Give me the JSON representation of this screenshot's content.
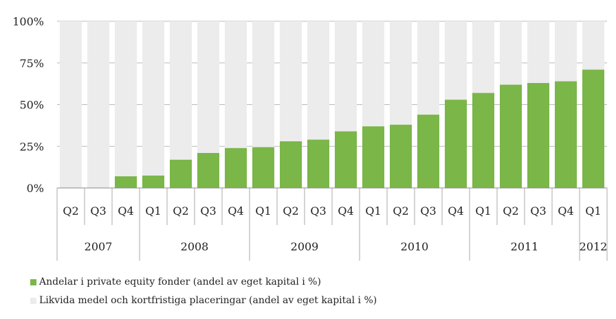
{
  "chart_data": {
    "type": "bar",
    "stacked": true,
    "categories": [
      "Q2",
      "Q3",
      "Q4",
      "Q1",
      "Q2",
      "Q3",
      "Q4",
      "Q1",
      "Q2",
      "Q3",
      "Q4",
      "Q1",
      "Q2",
      "Q3",
      "Q4",
      "Q1",
      "Q2",
      "Q3",
      "Q4",
      "Q1"
    ],
    "year_groups": [
      {
        "label": "2007",
        "span": 3
      },
      {
        "label": "2008",
        "span": 4
      },
      {
        "label": "2009",
        "span": 4
      },
      {
        "label": "2010",
        "span": 4
      },
      {
        "label": "2011",
        "span": 4
      },
      {
        "label": "2012",
        "span": 1
      }
    ],
    "series": [
      {
        "name": "Andelar i private equity fonder (andel av eget kapital i %)",
        "color": "#7ab648",
        "values": [
          0,
          0,
          7,
          7.5,
          17,
          21,
          24,
          24.5,
          28,
          29,
          34,
          37,
          38,
          44,
          53,
          57,
          62,
          63,
          64,
          71
        ]
      },
      {
        "name": "Likvida medel och kortfristiga placeringar (andel av eget kapital i %)",
        "color": "#ececec",
        "values": [
          100,
          100,
          93,
          92.5,
          83,
          79,
          76,
          75.5,
          72,
          71,
          66,
          63,
          62,
          56,
          47,
          43,
          38,
          37,
          36,
          29
        ]
      }
    ],
    "ylim": [
      0,
      100
    ],
    "yticks": [
      "0%",
      "25%",
      "50%",
      "75%",
      "100%"
    ],
    "grid": true,
    "legend_position": "bottom-left"
  }
}
